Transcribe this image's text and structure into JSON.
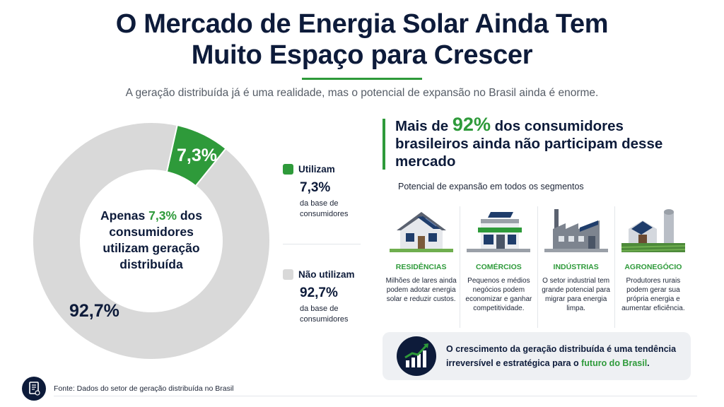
{
  "header": {
    "title_line1": "O Mercado de Energia Solar Ainda Tem",
    "title_line2": "Muito Espaço para Crescer",
    "subtitle": "A geração distribuída já é uma realidade, mas o potencial de expansão no Brasil ainda é enorme."
  },
  "chart_data": {
    "type": "pie",
    "labels": [
      "Utilizam",
      "Não utilizam"
    ],
    "values": [
      7.3,
      92.7
    ],
    "colors": [
      "#2e9a3a",
      "#d9d9d9"
    ],
    "value_labels": [
      "7,3%",
      "92,7%"
    ]
  },
  "donut": {
    "center_prefix": "Apenas",
    "center_value": "7,3%",
    "center_rest": "dos consumidores utilizam geração distribuída"
  },
  "legend": [
    {
      "label": "Utilizam",
      "value": "7,3%",
      "desc": "da base de consumidores",
      "color": "#2e9a3a"
    },
    {
      "label": "Não utilizam",
      "value": "92,7%",
      "desc": "da base de consumidores",
      "color": "#d9d9d9"
    }
  ],
  "headline": {
    "prefix": "Mais de",
    "value": "92%",
    "rest": "dos consumidores brasileiros ainda não participam desse mercado"
  },
  "potential": "Potencial de expansão em todos os segmentos",
  "segments": [
    {
      "icon": "house-solar-icon",
      "title": "RESIDÊNCIAS",
      "desc": "Milhões de lares ainda podem adotar energia solar e reduzir custos."
    },
    {
      "icon": "store-solar-icon",
      "title": "COMÉRCIOS",
      "desc": "Pequenos e médios negócios podem economizar e ganhar competitividade."
    },
    {
      "icon": "factory-solar-icon",
      "title": "INDÚSTRIAS",
      "desc": "O setor industrial tem grande potencial para migrar para energia limpa."
    },
    {
      "icon": "farm-solar-icon",
      "title": "AGRONEGÓCIO",
      "desc": "Produtores rurais podem gerar sua própria energia e aumentar eficiência."
    }
  ],
  "callout": {
    "icon": "growth-chart-icon",
    "text_main": "O crescimento da geração distribuída é uma tendência irreversível e estratégica para o",
    "text_highlight": "futuro do Brasil",
    "text_end": "."
  },
  "footer": {
    "icon": "document-icon",
    "source": "Fonte: Dados do setor de geração distribuída no Brasil"
  },
  "colors": {
    "accent": "#2e9a3a",
    "navy": "#0d1b3a",
    "gray": "#d9d9d9"
  }
}
